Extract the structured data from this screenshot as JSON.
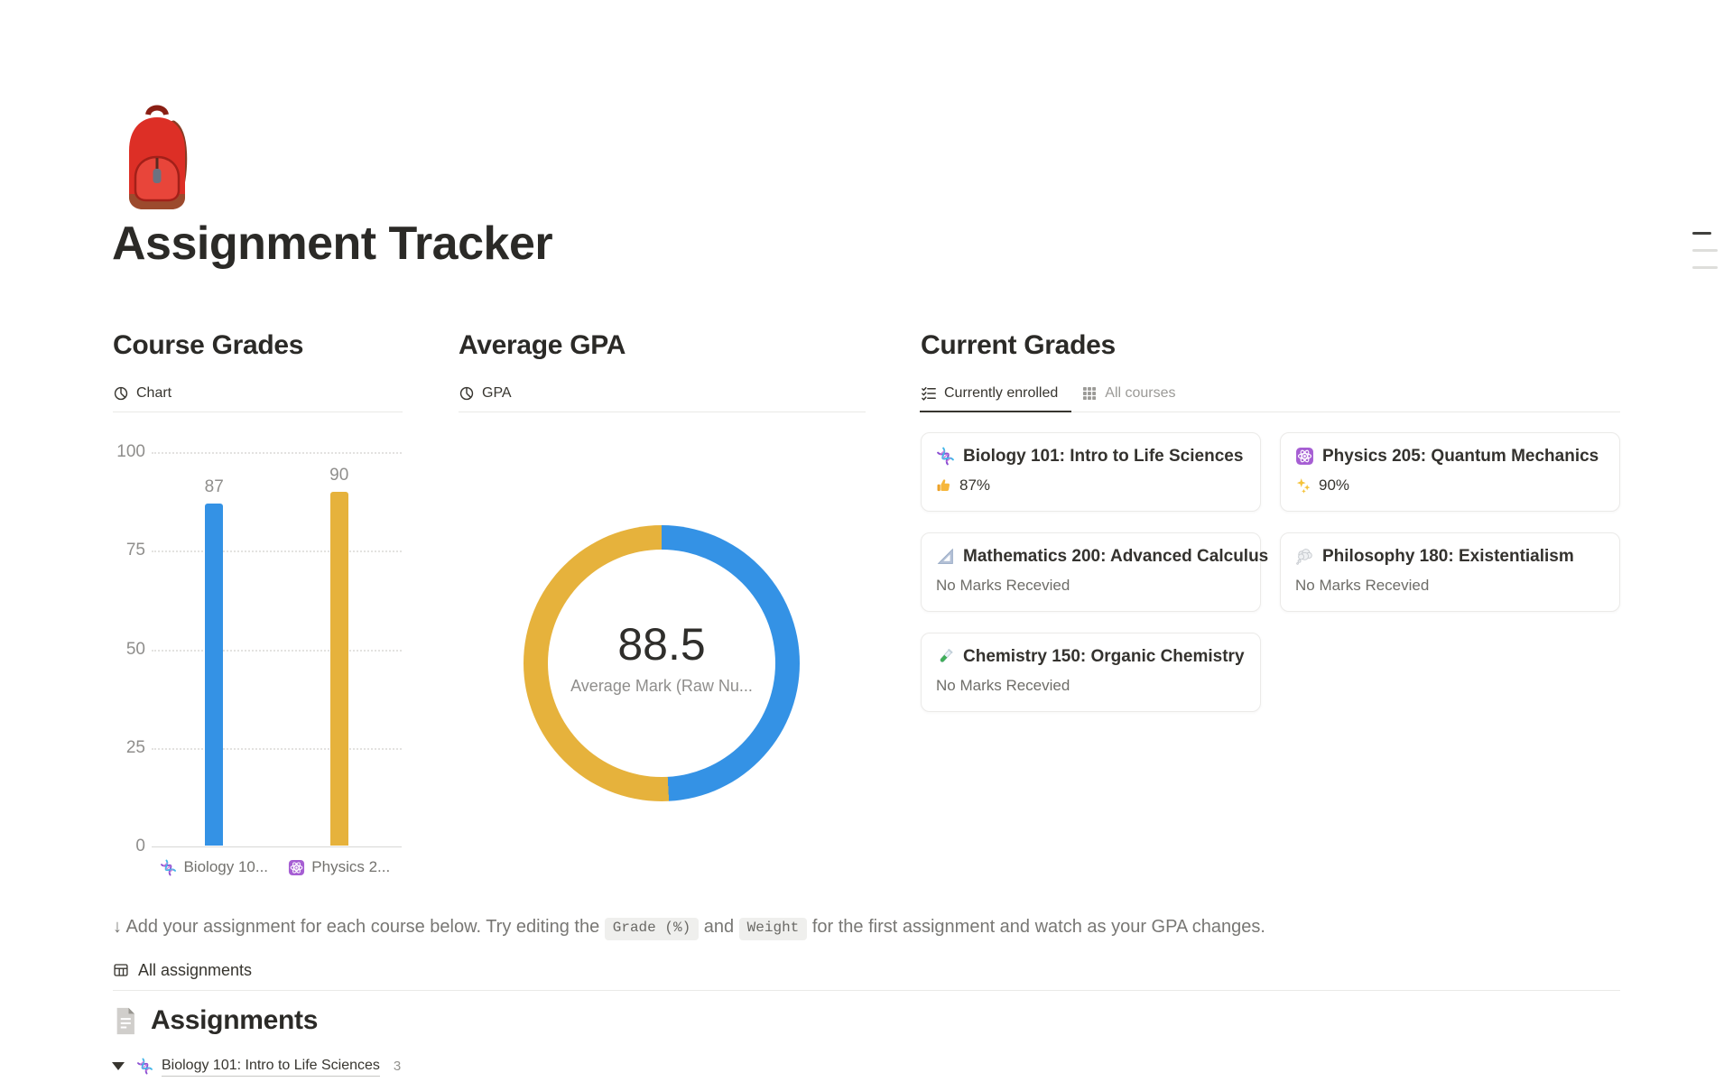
{
  "page": {
    "title": "Assignment Tracker",
    "emoji": "backpack"
  },
  "colors": {
    "blue": "#3492e5",
    "yellow": "#e6b23c",
    "text_dark": "#37352f",
    "text_gray": "#787774"
  },
  "sections": {
    "course_grades": {
      "heading": "Course Grades",
      "tab_label": "Chart",
      "tab_icon": "pie-chart"
    },
    "average_gpa": {
      "heading": "Average GPA",
      "tab_label": "GPA",
      "tab_icon": "pie-chart"
    },
    "current_grades": {
      "heading": "Current Grades",
      "tabs": [
        {
          "label": "Currently enrolled",
          "icon": "checklist",
          "active": true
        },
        {
          "label": "All courses",
          "icon": "grid",
          "active": false
        }
      ],
      "cards": [
        {
          "icon": "dna",
          "title": "Biology 101: Intro to Life Sciences",
          "mark_icon": "thumbs-up",
          "mark_text": "87%"
        },
        {
          "icon": "atom",
          "title": "Physics 205: Quantum Mechanics",
          "mark_icon": "sparkles",
          "mark_text": "90%"
        },
        {
          "icon": "ruler",
          "title": "Mathematics 200: Advanced Calculus",
          "mark_text": "No Marks Recevied"
        },
        {
          "icon": "thought-balloon",
          "title": "Philosophy 180: Existentialism",
          "mark_text": "No Marks Recevied"
        },
        {
          "icon": "test-tube",
          "title": "Chemistry 150: Organic Chemistry",
          "mark_text": "No Marks Recevied"
        }
      ]
    }
  },
  "chart_data": [
    {
      "type": "bar",
      "title": "Course Grades",
      "categories": [
        "Biology 10...",
        "Physics 2..."
      ],
      "category_icons": [
        "dna",
        "atom"
      ],
      "values": [
        87,
        90
      ],
      "data_labels": [
        "87",
        "90"
      ],
      "bar_colors": [
        "#3492e5",
        "#e6b23c"
      ],
      "xlabel": "",
      "ylabel": "",
      "ylim": [
        0,
        100
      ],
      "yticks": [
        0,
        25,
        50,
        75,
        100
      ],
      "grid": "horizontal-dotted",
      "legend": "none"
    },
    {
      "type": "donut",
      "title": "Average GPA",
      "center_value": "88.5",
      "center_label": "Average Mark (Raw Nu...",
      "slices": [
        {
          "name": "Biology 101: Intro to Life Sciences",
          "value": 87,
          "color": "#3492e5"
        },
        {
          "name": "Physics 205: Quantum Mechanics",
          "value": 90,
          "color": "#e6b23c"
        }
      ],
      "legend": "none"
    }
  ],
  "hint": {
    "prefix": "↓ Add your assignment for each course below. Try editing the ",
    "code1": "Grade (%)",
    "mid": " and ",
    "code2": "Weight",
    "suffix": " for the first assignment and watch as your GPA changes."
  },
  "views": {
    "all_assignments_label": "All assignments"
  },
  "assignments": {
    "heading": "Assignments",
    "groups": [
      {
        "icon": "dna",
        "title": "Biology 101: Intro to Life Sciences",
        "count": "3"
      }
    ]
  }
}
